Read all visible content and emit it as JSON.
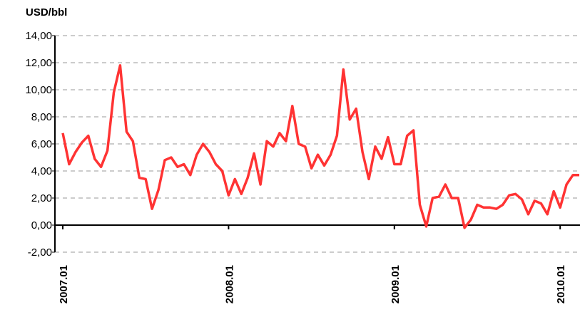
{
  "chart_data": {
    "type": "line",
    "y_label": "USD/bbl",
    "categories": [
      "2007.01",
      null,
      null,
      null,
      null,
      null,
      null,
      null,
      null,
      null,
      null,
      null,
      null,
      null,
      null,
      null,
      null,
      null,
      null,
      null,
      null,
      null,
      null,
      null,
      null,
      null,
      "2008.01",
      null,
      null,
      null,
      null,
      null,
      null,
      null,
      null,
      null,
      null,
      null,
      null,
      null,
      null,
      null,
      null,
      null,
      null,
      null,
      null,
      null,
      null,
      null,
      null,
      null,
      "2009.01",
      null,
      null,
      null,
      null,
      null,
      null,
      null,
      null,
      null,
      null,
      null,
      null,
      null,
      null,
      null,
      null,
      null,
      null,
      null,
      null,
      null,
      null,
      null,
      null,
      null,
      "2010.01",
      null,
      null,
      null
    ],
    "series": [
      {
        "name": "USD/bbl",
        "color": "#ff3333",
        "values": [
          6.8,
          4.5,
          5.4,
          6.1,
          6.6,
          4.9,
          4.3,
          5.5,
          9.8,
          11.8,
          6.9,
          6.2,
          3.5,
          3.4,
          1.2,
          2.6,
          4.8,
          5.0,
          4.3,
          4.5,
          3.7,
          5.2,
          6.0,
          5.4,
          4.5,
          4.0,
          2.2,
          3.4,
          2.3,
          3.5,
          5.3,
          3.0,
          6.2,
          5.8,
          6.8,
          6.2,
          8.8,
          6.0,
          5.8,
          4.2,
          5.2,
          4.4,
          5.2,
          6.6,
          11.5,
          7.8,
          8.6,
          5.4,
          3.4,
          5.8,
          4.9,
          6.5,
          4.5,
          4.5,
          6.6,
          7.0,
          1.5,
          -0.1,
          2.0,
          2.1,
          3.0,
          2.0,
          2.0,
          -0.2,
          0.4,
          1.5,
          1.3,
          1.3,
          1.2,
          1.5,
          2.2,
          2.3,
          1.9,
          0.8,
          1.8,
          1.6,
          0.8,
          2.5,
          1.3,
          3.0,
          3.7,
          3.7
        ]
      }
    ],
    "ylim": [
      -2,
      14
    ],
    "yticks": [
      {
        "value": -2,
        "label": "-2,00"
      },
      {
        "value": 0,
        "label": "0,00"
      },
      {
        "value": 2,
        "label": "2,00"
      },
      {
        "value": 4,
        "label": "4,00"
      },
      {
        "value": 6,
        "label": "6,00"
      },
      {
        "value": 8,
        "label": "8,00"
      },
      {
        "value": 10,
        "label": "10,00"
      },
      {
        "value": 12,
        "label": "12,00"
      },
      {
        "value": 14,
        "label": "14,00"
      }
    ],
    "grid": true
  }
}
